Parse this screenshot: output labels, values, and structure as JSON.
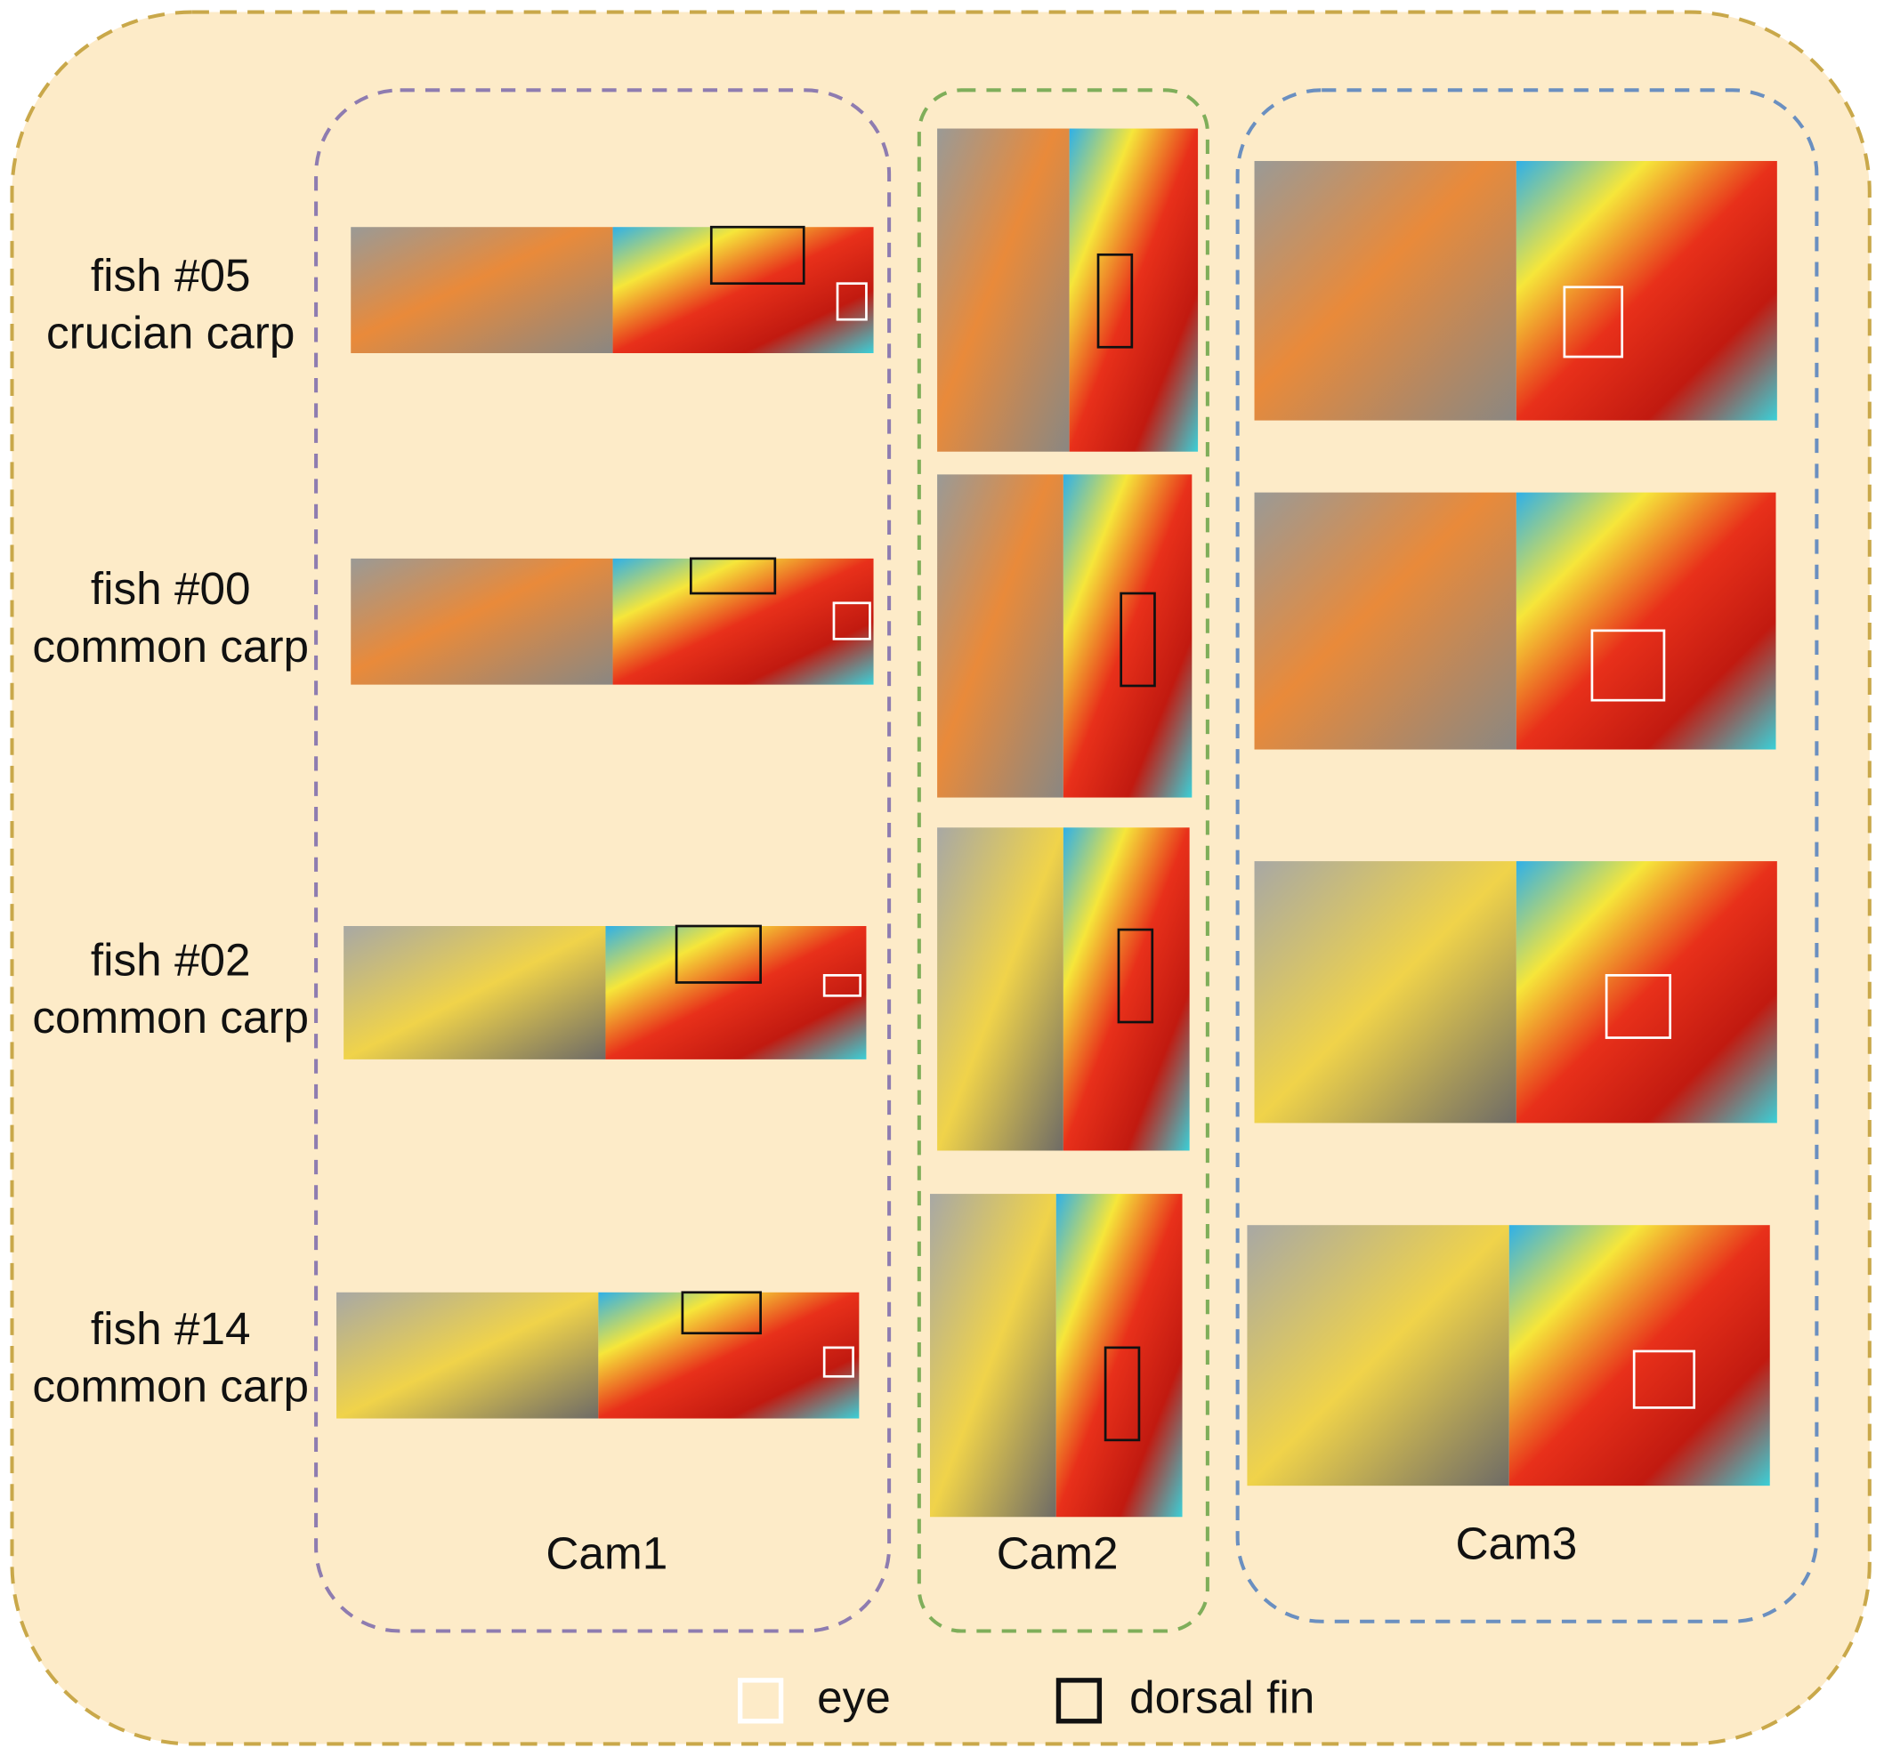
{
  "rows": [
    {
      "id": "fish #05",
      "species": "crucian carp"
    },
    {
      "id": "fish #00",
      "species": "common carp"
    },
    {
      "id": "fish #02",
      "species": "common carp"
    },
    {
      "id": "fish #14",
      "species": "common carp"
    }
  ],
  "cameras": [
    "Cam1",
    "Cam2",
    "Cam3"
  ],
  "legend": [
    "eye",
    "dorsal fin"
  ]
}
